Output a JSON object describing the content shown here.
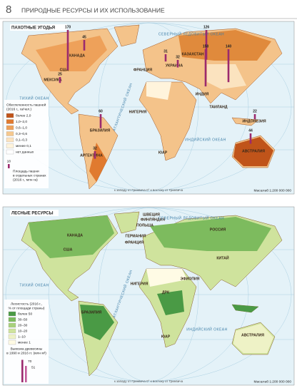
{
  "header": {
    "page_number": "8",
    "title": "ПРИРОДНЫЕ РЕСУРСЫ И ИХ ИСПОЛЬЗОВАНИЕ"
  },
  "maps": [
    {
      "title": "ПАХОТНЫЕ УГОДЬЯ",
      "legend_title": "Обеспеченность пашней",
      "legend_subtitle": "(2016 г., га/чел.)",
      "legend": [
        {
          "label": "более 2,0",
          "color": "#c0541a"
        },
        {
          "label": "1,0–2,0",
          "color": "#e07a2f"
        },
        {
          "label": "0,6–1,0",
          "color": "#eea15a"
        },
        {
          "label": "0,3–0,6",
          "color": "#f6c88e"
        },
        {
          "label": "0,1–0,3",
          "color": "#fbe3bf"
        },
        {
          "label": "менее 0,1",
          "color": "#fff4dc"
        },
        {
          "label": "нет данных",
          "color": "#ffffff"
        }
      ],
      "bar_legend": {
        "value": 18,
        "label_1": "Площадь пашни",
        "label_2": "в отдельных странах",
        "label_3": "(2016 г., млн га)"
      },
      "bar_color": "#9b2a6e",
      "bars": [
        170,
        45,
        25,
        126,
        31,
        32,
        158,
        140,
        60,
        32,
        22,
        44
      ],
      "countries": [
        "КАНАДА",
        "США",
        "МЕКСИКА",
        "ФРАНЦИЯ",
        "УКРАИНА",
        "КАЗАХСТАН",
        "ИНДИЯ",
        "ТАИЛАНД",
        "ИНДОНЕЗИЯ",
        "НИГЕРИЯ",
        "БРАЗИЛИЯ",
        "АРГЕНТИНА",
        "ЮАР",
        "АВСТРАЛИЯ"
      ],
      "oceans": [
        "СЕВЕРНЫЙ ЛЕДОВИТЫЙ ОКЕАН",
        "ТИХИЙ ОКЕАН",
        "АТЛАНТИЧЕСКИЙ ОКЕАН",
        "ИНДИЙСКИЙ ОКЕАН"
      ],
      "meridian_note": "к западу от Гринвича   0°   к востоку от Гринвича",
      "scale": "Масштаб 1:200 000 000"
    },
    {
      "title": "ЛЕСНЫЕ РЕСУРСЫ",
      "legend_title": "Лесистость (2016 г.,",
      "legend_subtitle": "% от площади страны)",
      "legend": [
        {
          "label": "более 50",
          "color": "#4a9a45"
        },
        {
          "label": "30–50",
          "color": "#7dbb5e"
        },
        {
          "label": "20–30",
          "color": "#a8d17c"
        },
        {
          "label": "10–20",
          "color": "#cfe39d"
        },
        {
          "label": "1–10",
          "color": "#eef2c6"
        },
        {
          "label": "менее 1",
          "color": "#fffbe5"
        }
      ],
      "bar_legend": {
        "label_1": "Вывозка древесины",
        "label_2": "в 1990 и 2016 гг. (млн м³)",
        "values": [
          70,
          51
        ]
      },
      "bar_color": "#9b2a6e",
      "countries": [
        "КАНАДА",
        "США",
        "ШВЕЦИЯ",
        "ФИНЛЯНДИЯ",
        "ПОЛЬША",
        "ГЕРМАНИЯ",
        "ФРАНЦИЯ",
        "РОССИЯ",
        "КИТАЙ",
        "ЭФИОПИЯ",
        "НИГЕРИЯ",
        "ДРК",
        "БРАЗИЛИЯ",
        "ЮАР",
        "АВСТРАЛИЯ"
      ],
      "oceans": [
        "СЕВЕРНЫЙ ЛЕДОВИТЫЙ ОКЕАН",
        "ТИХИЙ ОКЕАН",
        "АТЛАНТИЧЕСКИЙ ОКЕАН",
        "ИНДИЙСКИЙ ОКЕАН"
      ],
      "meridian_note": "к западу от Гринвича   0°   к востоку от Гринвича",
      "scale": "Масштаб 1:200 000 000"
    }
  ]
}
